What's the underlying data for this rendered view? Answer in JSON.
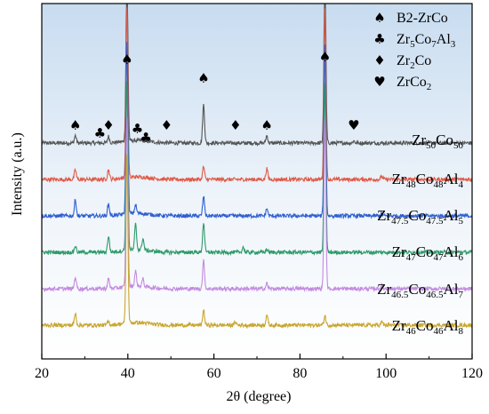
{
  "chart_data": {
    "type": "line",
    "xlabel": "2θ (degree)",
    "ylabel": "Intensity (a.u.)",
    "xlim": [
      20,
      120
    ],
    "xticks": [
      20,
      40,
      60,
      80,
      100,
      120
    ],
    "grid": false,
    "legend_position": "top-right",
    "legend": [
      {
        "symbol": "♠",
        "symbol_name": "spade-icon",
        "parts": [
          [
            "B2-ZrCo",
            ""
          ]
        ]
      },
      {
        "symbol": "♣",
        "symbol_name": "club-icon",
        "parts": [
          [
            "Zr",
            ""
          ],
          [
            "5",
            "sub"
          ],
          [
            "Co",
            ""
          ],
          [
            "7",
            "sub"
          ],
          [
            "Al",
            ""
          ],
          [
            "3",
            "sub"
          ]
        ]
      },
      {
        "symbol": "♦",
        "symbol_name": "diamond-icon",
        "parts": [
          [
            "Zr",
            ""
          ],
          [
            "2",
            "sub"
          ],
          [
            "Co",
            ""
          ]
        ]
      },
      {
        "symbol": "♥",
        "symbol_name": "heart-icon",
        "parts": [
          [
            "ZrCo",
            ""
          ],
          [
            "2",
            "sub"
          ]
        ]
      }
    ],
    "peak_markers": [
      {
        "x": 27.8,
        "symbol": "♠"
      },
      {
        "x": 33.5,
        "symbol": "♣"
      },
      {
        "x": 35.5,
        "symbol": "♦"
      },
      {
        "x": 39.8,
        "symbol": "♠"
      },
      {
        "x": 42.2,
        "symbol": "♣"
      },
      {
        "x": 44.2,
        "symbol": "♣"
      },
      {
        "x": 49.0,
        "symbol": "♦"
      },
      {
        "x": 57.6,
        "symbol": "♠"
      },
      {
        "x": 65.0,
        "symbol": "♦"
      },
      {
        "x": 72.3,
        "symbol": "♠"
      },
      {
        "x": 85.8,
        "symbol": "♠"
      },
      {
        "x": 92.5,
        "symbol": "♥"
      }
    ],
    "series": [
      {
        "name_parts": [
          [
            "Zr",
            ""
          ],
          [
            "50",
            "sub"
          ],
          [
            "Co",
            ""
          ],
          [
            "50",
            "sub"
          ]
        ],
        "color": "#555555",
        "offset": 5,
        "peaks": [
          [
            27.8,
            0.35
          ],
          [
            35.5,
            0.3
          ],
          [
            39.8,
            8
          ],
          [
            57.6,
            1.8
          ],
          [
            72.3,
            0.35
          ],
          [
            85.8,
            8
          ],
          [
            92.5,
            0.1
          ]
        ]
      },
      {
        "name_parts": [
          [
            "Zr",
            ""
          ],
          [
            "48",
            "sub"
          ],
          [
            "Co",
            ""
          ],
          [
            "48",
            "sub"
          ],
          [
            "Al",
            ""
          ],
          [
            "4",
            "sub"
          ]
        ],
        "color": "#e05a47",
        "offset": 4,
        "peaks": [
          [
            27.8,
            0.45
          ],
          [
            35.5,
            0.45
          ],
          [
            39.8,
            8
          ],
          [
            57.6,
            0.6
          ],
          [
            72.3,
            0.5
          ],
          [
            85.8,
            8
          ],
          [
            99.0,
            0.15
          ]
        ]
      },
      {
        "name_parts": [
          [
            "Zr",
            ""
          ],
          [
            "47.5",
            "sub"
          ],
          [
            "Co",
            ""
          ],
          [
            "47.5",
            "sub"
          ],
          [
            "Al",
            ""
          ],
          [
            "5",
            "sub"
          ]
        ],
        "color": "#2f5fd0",
        "offset": 3,
        "peaks": [
          [
            27.8,
            0.75
          ],
          [
            35.5,
            0.55
          ],
          [
            39.8,
            8
          ],
          [
            41.8,
            0.4
          ],
          [
            57.6,
            0.9
          ],
          [
            72.3,
            0.35
          ],
          [
            85.8,
            8
          ],
          [
            99.0,
            0.1
          ]
        ]
      },
      {
        "name_parts": [
          [
            "Zr",
            ""
          ],
          [
            "47",
            "sub"
          ],
          [
            "Co",
            ""
          ],
          [
            "47",
            "sub"
          ],
          [
            "Al",
            ""
          ],
          [
            "6",
            "sub"
          ]
        ],
        "color": "#2e9a6a",
        "offset": 2,
        "peaks": [
          [
            27.8,
            0.3
          ],
          [
            35.5,
            0.75
          ],
          [
            39.8,
            8
          ],
          [
            41.8,
            1.2
          ],
          [
            43.5,
            0.55
          ],
          [
            57.6,
            1.4
          ],
          [
            66.8,
            0.25
          ],
          [
            72.3,
            0.15
          ],
          [
            85.8,
            8
          ]
        ]
      },
      {
        "name_parts": [
          [
            "Zr",
            ""
          ],
          [
            "46.5",
            "sub"
          ],
          [
            "Co",
            ""
          ],
          [
            "46.5",
            "sub"
          ],
          [
            "Al",
            ""
          ],
          [
            "7",
            "sub"
          ]
        ],
        "color": "#c38be0",
        "offset": 1,
        "peaks": [
          [
            27.8,
            0.55
          ],
          [
            35.5,
            0.45
          ],
          [
            39.8,
            8
          ],
          [
            41.8,
            0.7
          ],
          [
            43.5,
            0.35
          ],
          [
            57.6,
            1.3
          ],
          [
            72.3,
            0.25
          ],
          [
            85.8,
            8
          ],
          [
            99.0,
            0.15
          ]
        ]
      },
      {
        "name_parts": [
          [
            "Zr",
            ""
          ],
          [
            "46",
            "sub"
          ],
          [
            "Co",
            ""
          ],
          [
            "46",
            "sub"
          ],
          [
            "Al",
            ""
          ],
          [
            "8",
            "sub"
          ]
        ],
        "color": "#c9a62e",
        "offset": 0,
        "peaks": [
          [
            27.8,
            0.55
          ],
          [
            35.5,
            0.15
          ],
          [
            39.8,
            8
          ],
          [
            57.6,
            0.7
          ],
          [
            65.0,
            0.15
          ],
          [
            72.3,
            0.5
          ],
          [
            85.8,
            0.45
          ],
          [
            99.0,
            0.15
          ]
        ]
      }
    ]
  }
}
